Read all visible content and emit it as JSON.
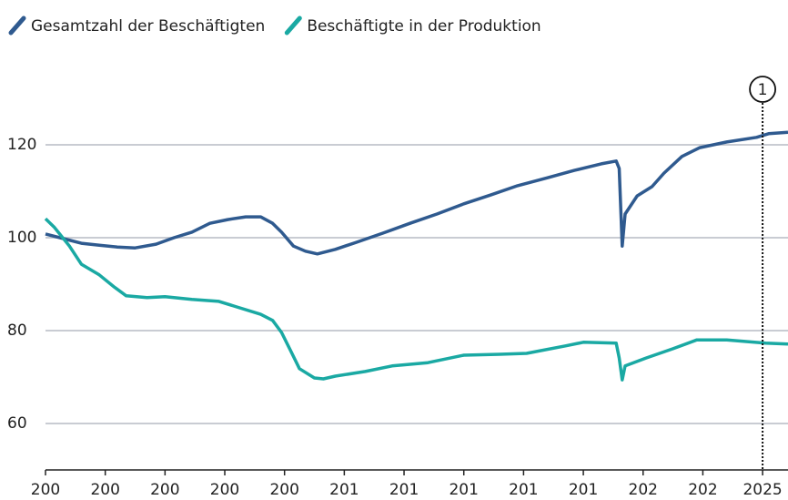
{
  "chart_data": {
    "type": "line",
    "xlim": [
      2001,
      2025.85
    ],
    "ylim": [
      50,
      140
    ],
    "yticks": [
      60,
      80,
      100,
      120
    ],
    "xticks": [
      {
        "value": 2001,
        "label": "200"
      },
      {
        "value": 2003,
        "label": "200"
      },
      {
        "value": 2005,
        "label": "200"
      },
      {
        "value": 2007,
        "label": "200"
      },
      {
        "value": 2009,
        "label": "200"
      },
      {
        "value": 2011,
        "label": "201"
      },
      {
        "value": 2013,
        "label": "201"
      },
      {
        "value": 2015,
        "label": "201"
      },
      {
        "value": 2017,
        "label": "201"
      },
      {
        "value": 2019,
        "label": "201"
      },
      {
        "value": 2021,
        "label": "202"
      },
      {
        "value": 2023,
        "label": "202"
      },
      2025
    ],
    "grid": true,
    "legend": "top-left",
    "annotations": [
      {
        "label": "1",
        "x": 2025
      }
    ],
    "series": [
      {
        "name": "Gesamtzahl der Beschäftigten",
        "color": "#2f5a8f",
        "x": [
          2001.0,
          2001.6,
          2002.2,
          2002.8,
          2003.4,
          2004.0,
          2004.7,
          2005.3,
          2005.9,
          2006.5,
          2007.1,
          2007.7,
          2008.2,
          2008.6,
          2008.9,
          2009.3,
          2009.7,
          2010.1,
          2010.7,
          2011.4,
          2012.3,
          2013.2,
          2014.1,
          2015.0,
          2015.9,
          2016.8,
          2017.8,
          2018.7,
          2019.6,
          2020.1,
          2020.2,
          2020.3,
          2020.4,
          2020.8,
          2021.3,
          2021.7,
          2022.3,
          2022.9,
          2023.8,
          2024.8,
          2025.2,
          2025.85
        ],
        "values": [
          100.8,
          99.8,
          98.8,
          98.4,
          98.0,
          97.8,
          98.6,
          100.0,
          101.2,
          103.1,
          103.9,
          104.5,
          104.5,
          103.1,
          101.2,
          98.2,
          97.1,
          96.5,
          97.5,
          99.0,
          101.0,
          103.1,
          105.1,
          107.3,
          109.2,
          111.2,
          112.9,
          114.5,
          115.9,
          116.5,
          114.9,
          98.2,
          105.1,
          109.0,
          111.0,
          113.9,
          117.5,
          119.4,
          120.6,
          121.6,
          122.4,
          122.7
        ]
      },
      {
        "name": "Beschäftigte in der Produktion",
        "color": "#1aa9a3",
        "x": [
          2001.0,
          2001.3,
          2001.8,
          2002.2,
          2002.8,
          2003.3,
          2003.7,
          2004.4,
          2005.0,
          2005.9,
          2006.8,
          2007.4,
          2008.2,
          2008.6,
          2008.9,
          2009.2,
          2009.5,
          2010.0,
          2010.3,
          2010.7,
          2011.7,
          2012.6,
          2013.8,
          2015.0,
          2016.2,
          2017.1,
          2018.4,
          2019.0,
          2020.1,
          2020.2,
          2020.3,
          2020.4,
          2021.1,
          2022.0,
          2022.8,
          2023.8,
          2025.1,
          2025.85
        ],
        "values": [
          104.1,
          102.2,
          98.2,
          94.3,
          92.0,
          89.4,
          87.5,
          87.1,
          87.3,
          86.7,
          86.3,
          85.1,
          83.5,
          82.2,
          79.6,
          75.7,
          71.8,
          69.8,
          69.6,
          70.2,
          71.2,
          72.4,
          73.1,
          74.7,
          74.9,
          75.1,
          76.7,
          77.5,
          77.3,
          74.1,
          69.4,
          72.4,
          74.1,
          76.1,
          78.0,
          78.0,
          77.3,
          77.1
        ]
      }
    ]
  }
}
